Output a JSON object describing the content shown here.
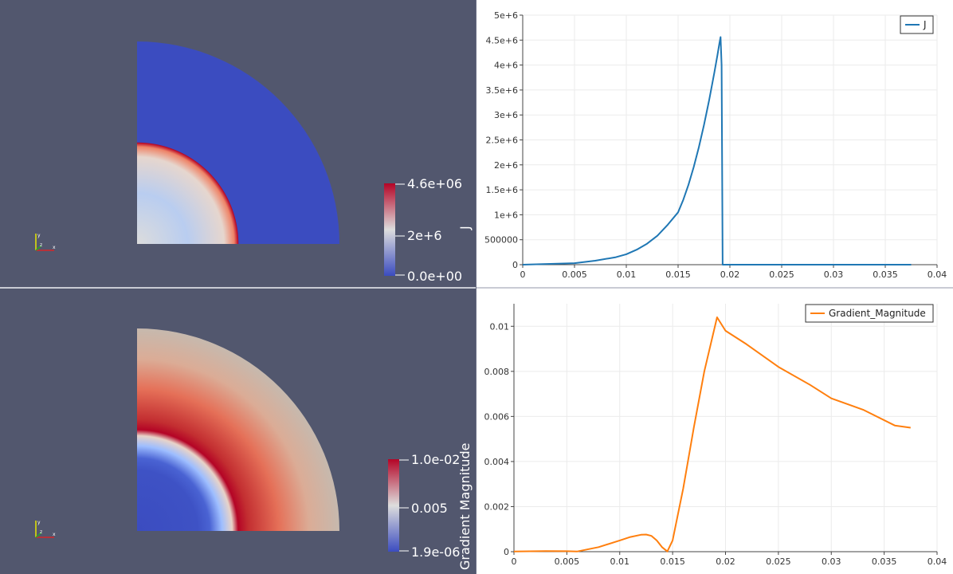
{
  "colors": {
    "background": "#52576e",
    "line_J": "#1f77b4",
    "line_grad": "#ff7f0e",
    "cool": "#3b4cc0",
    "warm": "#b40426",
    "mid": "#dddddd"
  },
  "render_top": {
    "colorbar": {
      "title": "J",
      "max_label": "4.6e+06",
      "mid_label": "2e+6",
      "min_label": "0.0e+00"
    }
  },
  "render_bottom": {
    "colorbar": {
      "title": "Gradient Magnitude",
      "max_label": "1.0e-02",
      "mid_label": "0.005",
      "min_label": "1.9e-06"
    }
  },
  "chart_data": [
    {
      "type": "line",
      "legend": "J",
      "legend_position": "top-right",
      "grid": true,
      "xlim": [
        0,
        0.04
      ],
      "ylim": [
        0,
        5000000
      ],
      "xticks": [
        0,
        0.005,
        0.01,
        0.015,
        0.02,
        0.025,
        0.03,
        0.035,
        0.04
      ],
      "xtick_labels": [
        "0",
        "0.005",
        "0.01",
        "0.015",
        "0.02",
        "0.025",
        "0.03",
        "0.035",
        "0.04"
      ],
      "yticks": [
        0,
        500000,
        1000000,
        1500000,
        2000000,
        2500000,
        3000000,
        3500000,
        4000000,
        4500000,
        5000000
      ],
      "ytick_labels": [
        "0",
        "500000",
        "1e+6",
        "1.5e+6",
        "2e+6",
        "2.5e+6",
        "3e+6",
        "3.5e+6",
        "4e+6",
        "4.5e+6",
        "5e+6"
      ],
      "series": [
        {
          "name": "J",
          "x": [
            0,
            0.005,
            0.007,
            0.009,
            0.01,
            0.011,
            0.012,
            0.013,
            0.014,
            0.015,
            0.0155,
            0.016,
            0.0165,
            0.017,
            0.0175,
            0.018,
            0.0185,
            0.0188,
            0.019,
            0.0191,
            0.0192,
            0.0193,
            0.025,
            0.03,
            0.0375
          ],
          "y": [
            0,
            30000,
            80000,
            150000,
            210000,
            300000,
            420000,
            580000,
            800000,
            1050000,
            1300000,
            1600000,
            1950000,
            2350000,
            2800000,
            3300000,
            3850000,
            4200000,
            4450000,
            4560000,
            4000000,
            0,
            0,
            0,
            0
          ]
        }
      ]
    },
    {
      "type": "line",
      "legend": "Gradient_Magnitude",
      "legend_position": "top-right",
      "grid": true,
      "xlim": [
        0,
        0.04
      ],
      "ylim": [
        0,
        0.011
      ],
      "xticks": [
        0,
        0.005,
        0.01,
        0.015,
        0.02,
        0.025,
        0.03,
        0.035,
        0.04
      ],
      "xtick_labels": [
        "0",
        "0.005",
        "0.01",
        "0.015",
        "0.02",
        "0.025",
        "0.03",
        "0.035",
        "0.04"
      ],
      "yticks": [
        0,
        0.002,
        0.004,
        0.006,
        0.008,
        0.01
      ],
      "ytick_labels": [
        "0",
        "0.002",
        "0.004",
        "0.006",
        "0.008",
        "0.01"
      ],
      "series": [
        {
          "name": "Gradient_Magnitude",
          "x": [
            0,
            0.003,
            0.005,
            0.006,
            0.008,
            0.01,
            0.011,
            0.012,
            0.0125,
            0.013,
            0.0135,
            0.014,
            0.0145,
            0.015,
            0.016,
            0.017,
            0.018,
            0.0192,
            0.02,
            0.022,
            0.025,
            0.028,
            0.03,
            0.033,
            0.036,
            0.0375
          ],
          "y": [
            1e-05,
            3e-05,
            2e-05,
            1e-05,
            0.0002,
            0.0005,
            0.00065,
            0.00075,
            0.00076,
            0.0007,
            0.0005,
            0.0002,
            1e-05,
            0.0005,
            0.0028,
            0.0055,
            0.008,
            0.0104,
            0.0098,
            0.0092,
            0.0082,
            0.0074,
            0.0068,
            0.0063,
            0.0056,
            0.0055
          ]
        }
      ]
    }
  ]
}
